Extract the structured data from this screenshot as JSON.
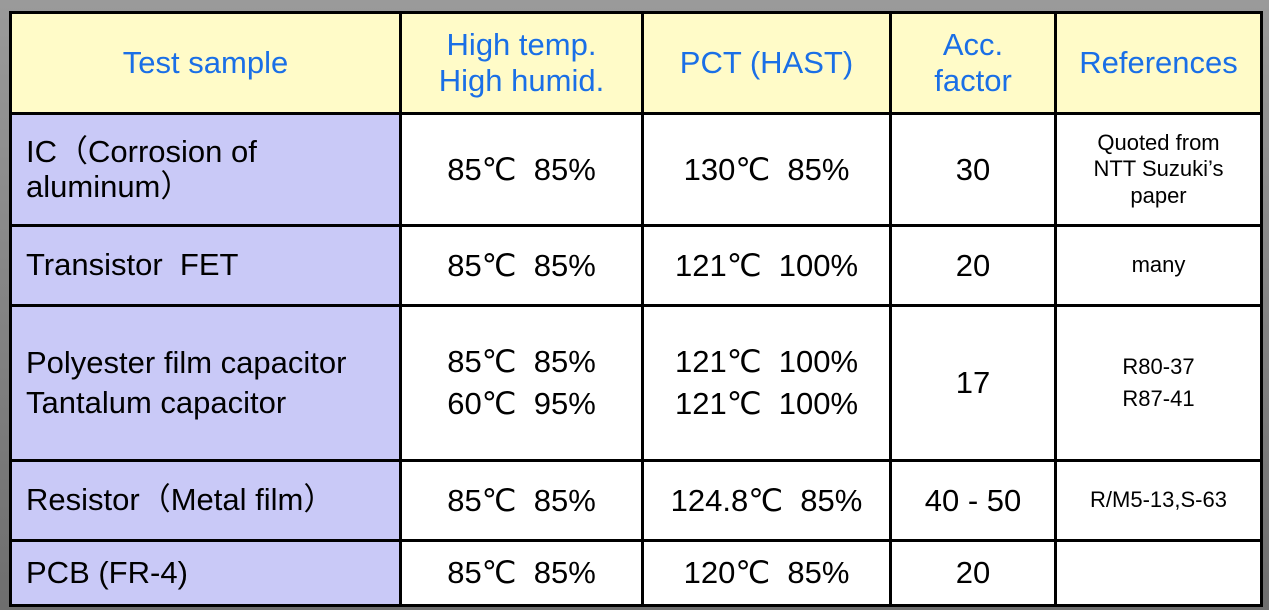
{
  "header": {
    "columns": [
      [
        "Test sample"
      ],
      [
        "High temp.",
        "High humid."
      ],
      [
        "PCT (HAST)"
      ],
      [
        "Acc.",
        "factor"
      ],
      [
        "References"
      ]
    ]
  },
  "table": {
    "rows": [
      {
        "sample": [
          "IC（Corrosion of",
          "aluminum）"
        ],
        "high": [
          "85℃  85%"
        ],
        "pct": [
          "130℃  85%"
        ],
        "acc": [
          "30"
        ],
        "refs": [
          "Quoted from",
          "NTT Suzuki’s",
          "paper"
        ]
      },
      {
        "sample": [
          "Transistor  FET"
        ],
        "high": [
          "85℃  85%"
        ],
        "pct": [
          "121℃  100%"
        ],
        "acc": [
          "20"
        ],
        "refs": [
          "many"
        ]
      },
      {
        "sample": [
          "Polyester film capacitor",
          "Tantalum capacitor"
        ],
        "high": [
          "85℃  85%",
          "60℃  95%"
        ],
        "pct": [
          "121℃  100%",
          "121℃  100%"
        ],
        "acc": [
          "17"
        ],
        "refs": [
          "R80-37",
          "R87-41"
        ]
      },
      {
        "sample": [
          "Resistor（Metal film）"
        ],
        "high": [
          "85℃  85%"
        ],
        "pct": [
          "124.8℃  85%"
        ],
        "acc": [
          "40 - 50"
        ],
        "refs": [
          "R/M5-13,S-63"
        ]
      },
      {
        "sample": [
          "PCB (FR-4)"
        ],
        "high": [
          "85℃  85%"
        ],
        "pct": [
          "120℃  85%"
        ],
        "acc": [
          "20"
        ]
      }
    ]
  }
}
